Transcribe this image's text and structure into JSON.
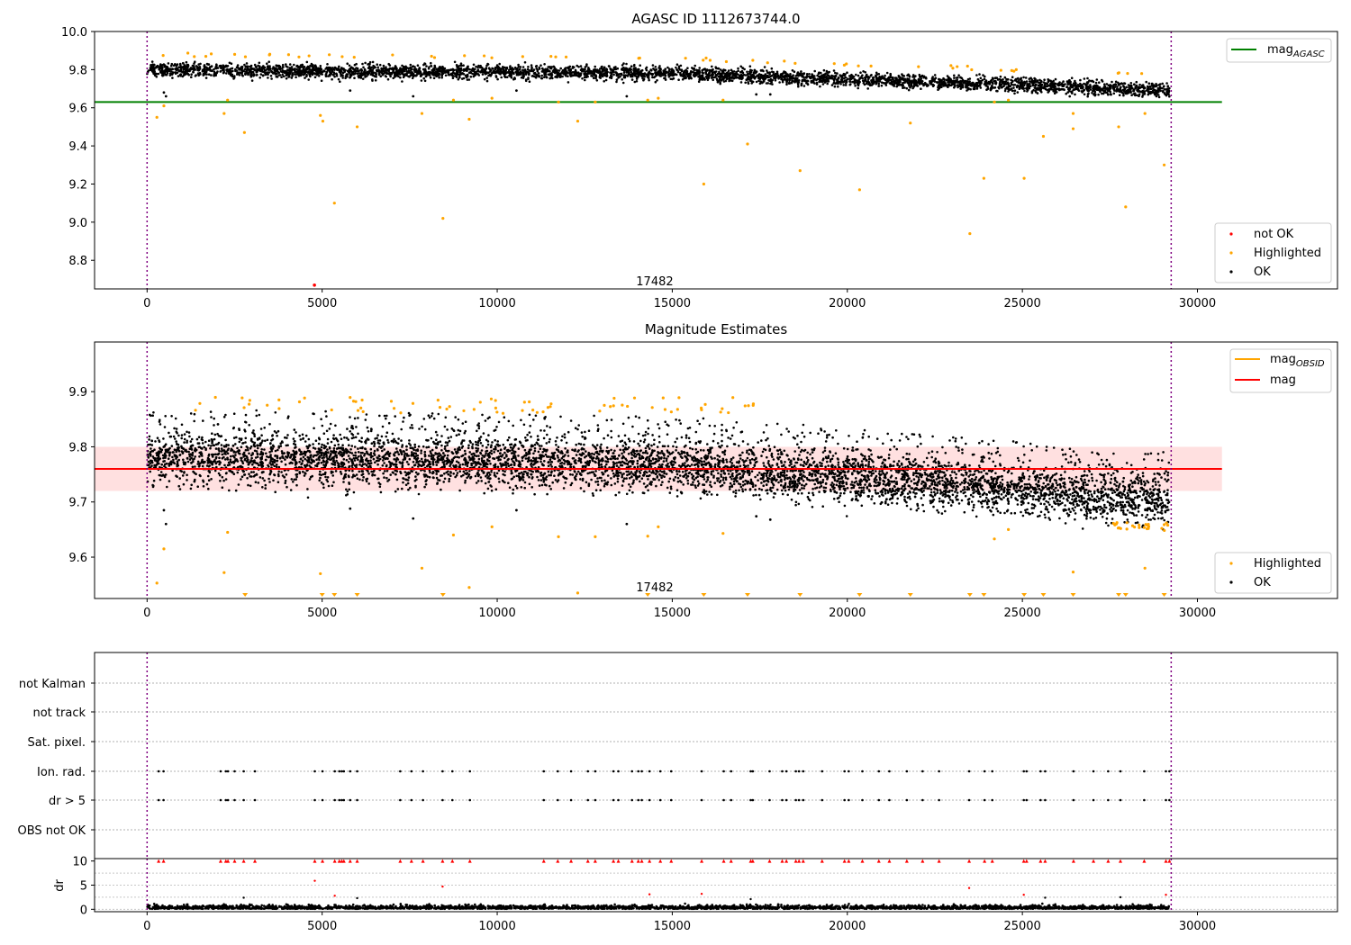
{
  "chart_data": [
    {
      "type": "scatter",
      "title": "AGASC ID 1112673744.0",
      "xlim": [
        -1500,
        34000
      ],
      "ylim": [
        8.65,
        10.0
      ],
      "xticks": [
        0,
        5000,
        10000,
        15000,
        20000,
        25000,
        30000
      ],
      "yticks": [
        8.8,
        9.0,
        9.2,
        9.4,
        9.6,
        9.8,
        10.0
      ],
      "ytick_labels": [
        "8.8",
        "9.0",
        "9.2",
        "9.4",
        "9.6",
        "9.8",
        "10.0"
      ],
      "vlines": [
        0,
        29250
      ],
      "hline": {
        "name": "mag_AGASC",
        "y": 9.63,
        "x_range": [
          -1500,
          30700
        ],
        "color": "#008000"
      },
      "legend_top": [
        {
          "label": "mag",
          "sub": "AGASC",
          "color": "#008000"
        }
      ],
      "legend_bottom": [
        {
          "label": "not OK",
          "color": "#ff0000"
        },
        {
          "label": "Highlighted",
          "color": "#ffa500"
        },
        {
          "label": "OK",
          "color": "#000000"
        }
      ],
      "annotation": {
        "text": "17482",
        "x": 14500,
        "y": 8.67
      },
      "ok_trend": {
        "x": [
          0,
          5000,
          10000,
          15000,
          20000,
          25000,
          29200
        ],
        "y": [
          9.8,
          9.79,
          9.79,
          9.78,
          9.75,
          9.72,
          9.69
        ]
      },
      "highlighted_points": [
        {
          "x": 280,
          "y": 9.55
        },
        {
          "x": 480,
          "y": 9.61
        },
        {
          "x": 2200,
          "y": 9.57
        },
        {
          "x": 2300,
          "y": 9.64
        },
        {
          "x": 2780,
          "y": 9.47
        },
        {
          "x": 4950,
          "y": 9.56
        },
        {
          "x": 5020,
          "y": 9.53
        },
        {
          "x": 5350,
          "y": 9.1
        },
        {
          "x": 6000,
          "y": 9.5
        },
        {
          "x": 7850,
          "y": 9.57
        },
        {
          "x": 8450,
          "y": 9.02
        },
        {
          "x": 8750,
          "y": 9.64
        },
        {
          "x": 9200,
          "y": 9.54
        },
        {
          "x": 9850,
          "y": 9.65
        },
        {
          "x": 11750,
          "y": 9.63
        },
        {
          "x": 12300,
          "y": 9.53
        },
        {
          "x": 12800,
          "y": 9.63
        },
        {
          "x": 14300,
          "y": 9.64
        },
        {
          "x": 14600,
          "y": 9.65
        },
        {
          "x": 15900,
          "y": 9.2
        },
        {
          "x": 16450,
          "y": 9.64
        },
        {
          "x": 17150,
          "y": 9.41
        },
        {
          "x": 18650,
          "y": 9.27
        },
        {
          "x": 20350,
          "y": 9.17
        },
        {
          "x": 21800,
          "y": 9.52
        },
        {
          "x": 23500,
          "y": 8.94
        },
        {
          "x": 23900,
          "y": 9.23
        },
        {
          "x": 24200,
          "y": 9.63
        },
        {
          "x": 24600,
          "y": 9.64
        },
        {
          "x": 25050,
          "y": 9.23
        },
        {
          "x": 25600,
          "y": 9.45
        },
        {
          "x": 26450,
          "y": 9.49
        },
        {
          "x": 26450,
          "y": 9.57
        },
        {
          "x": 27750,
          "y": 9.5
        },
        {
          "x": 27950,
          "y": 9.08
        },
        {
          "x": 28500,
          "y": 9.57
        },
        {
          "x": 29050,
          "y": 9.3
        }
      ],
      "not_ok_points": [
        {
          "x": 4780,
          "y": 8.67
        }
      ],
      "ok_outliers": [
        {
          "x": 480,
          "y": 9.68
        },
        {
          "x": 540,
          "y": 9.66
        },
        {
          "x": 5800,
          "y": 9.69
        },
        {
          "x": 7600,
          "y": 9.66
        },
        {
          "x": 10550,
          "y": 9.69
        },
        {
          "x": 13700,
          "y": 9.66
        },
        {
          "x": 17400,
          "y": 9.67
        },
        {
          "x": 17800,
          "y": 9.67
        }
      ]
    },
    {
      "type": "scatter",
      "title": "Magnitude Estimates",
      "xlim": [
        -1500,
        34000
      ],
      "ylim": [
        9.525,
        9.99
      ],
      "xticks": [
        0,
        5000,
        10000,
        15000,
        20000,
        25000,
        30000
      ],
      "yticks": [
        9.6,
        9.7,
        9.8,
        9.9
      ],
      "ytick_labels": [
        "9.6",
        "9.7",
        "9.8",
        "9.9"
      ],
      "vlines": [
        0,
        29250
      ],
      "band": {
        "y_low": 9.72,
        "y_high": 9.8
      },
      "mag_line": {
        "name": "mag",
        "y": 9.76,
        "x_range": [
          -1500,
          30700
        ],
        "color": "#ff0000"
      },
      "legend_top": [
        {
          "label": "mag",
          "sub": "OBSID",
          "color": "#ffa500"
        },
        {
          "label": "mag",
          "sub": "",
          "color": "#ff0000"
        }
      ],
      "legend_bottom": [
        {
          "label": "Highlighted",
          "color": "#ffa500"
        },
        {
          "label": "OK",
          "color": "#000000"
        }
      ],
      "annotation": {
        "text": "17482",
        "x": 14500,
        "y": 9.538
      },
      "ok_trend": {
        "x": [
          0,
          5000,
          10000,
          15000,
          20000,
          25000,
          29200
        ],
        "y": [
          9.78,
          9.775,
          9.77,
          9.765,
          9.745,
          9.72,
          9.7
        ]
      },
      "highlighted_points": [
        {
          "x": 280,
          "y": 9.553
        },
        {
          "x": 480,
          "y": 9.615
        },
        {
          "x": 2200,
          "y": 9.572
        },
        {
          "x": 2300,
          "y": 9.645
        },
        {
          "x": 4950,
          "y": 9.57
        },
        {
          "x": 7850,
          "y": 9.58
        },
        {
          "x": 8750,
          "y": 9.64
        },
        {
          "x": 9200,
          "y": 9.545
        },
        {
          "x": 9850,
          "y": 9.655
        },
        {
          "x": 11750,
          "y": 9.637
        },
        {
          "x": 12300,
          "y": 9.535
        },
        {
          "x": 12800,
          "y": 9.637
        },
        {
          "x": 14300,
          "y": 9.638
        },
        {
          "x": 14600,
          "y": 9.655
        },
        {
          "x": 16450,
          "y": 9.643
        },
        {
          "x": 24200,
          "y": 9.633
        },
        {
          "x": 24600,
          "y": 9.65
        },
        {
          "x": 26450,
          "y": 9.573
        },
        {
          "x": 28500,
          "y": 9.58
        }
      ],
      "off_scale_markers": [
        2800,
        5000,
        5350,
        6000,
        8450,
        14300,
        15900,
        17150,
        18650,
        20350,
        21800,
        23500,
        23900,
        25050,
        25600,
        26450,
        27750,
        27950,
        29050
      ],
      "ok_outliers": [
        {
          "x": 480,
          "y": 9.685
        },
        {
          "x": 540,
          "y": 9.66
        },
        {
          "x": 5800,
          "y": 9.688
        },
        {
          "x": 7600,
          "y": 9.67
        },
        {
          "x": 10550,
          "y": 9.685
        },
        {
          "x": 13700,
          "y": 9.66
        },
        {
          "x": 17400,
          "y": 9.674
        },
        {
          "x": 17800,
          "y": 9.668
        }
      ]
    },
    {
      "type": "scatter",
      "title": "",
      "xlim": [
        -1500,
        34000
      ],
      "flag_rows": [
        "not Kalman",
        "not track",
        "Sat. pixel.",
        "Ion. rad.",
        "dr > 5",
        "OBS not OK"
      ],
      "vlines": [
        0,
        29250
      ],
      "event_x": [
        330,
        470,
        2100,
        2250,
        2310,
        2500,
        2760,
        3080,
        4790,
        5010,
        5360,
        5490,
        5560,
        5620,
        5800,
        6000,
        7230,
        7550,
        7880,
        8440,
        8720,
        9220,
        11330,
        11730,
        12110,
        12590,
        12800,
        13320,
        13460,
        13850,
        14030,
        14130,
        14350,
        14660,
        14970,
        15840,
        16470,
        16680,
        17240,
        17300,
        17780,
        18140,
        18260,
        18530,
        18620,
        18740,
        19280,
        19920,
        20040,
        20430,
        20900,
        21200,
        21700,
        22150,
        22620,
        23480,
        23920,
        24140,
        25040,
        25120,
        25520,
        25650,
        26460,
        27030,
        27450,
        27800,
        28480,
        29100,
        29200
      ]
    },
    {
      "type": "scatter",
      "title": "",
      "ylabel": "dr",
      "xlim": [
        -1500,
        34000
      ],
      "ylim": [
        -0.5,
        10.5
      ],
      "xticks": [
        0,
        5000,
        10000,
        15000,
        20000,
        25000,
        30000
      ],
      "yticks": [
        0,
        5,
        10
      ],
      "ytick_labels": [
        "0",
        "5",
        "10"
      ],
      "vlines": [
        0,
        29250
      ],
      "red_points": [
        {
          "x": 4790,
          "y": 5.9
        },
        {
          "x": 5360,
          "y": 2.8
        },
        {
          "x": 8440,
          "y": 4.7
        },
        {
          "x": 14350,
          "y": 3.1
        },
        {
          "x": 15840,
          "y": 3.2
        },
        {
          "x": 23480,
          "y": 4.4
        },
        {
          "x": 25040,
          "y": 3.0
        },
        {
          "x": 29100,
          "y": 3.0
        }
      ],
      "black_outliers": [
        {
          "x": 2760,
          "y": 2.4
        },
        {
          "x": 6000,
          "y": 2.3
        },
        {
          "x": 17240,
          "y": 2.1
        },
        {
          "x": 25650,
          "y": 2.4
        },
        {
          "x": 27800,
          "y": 2.5
        }
      ]
    }
  ]
}
